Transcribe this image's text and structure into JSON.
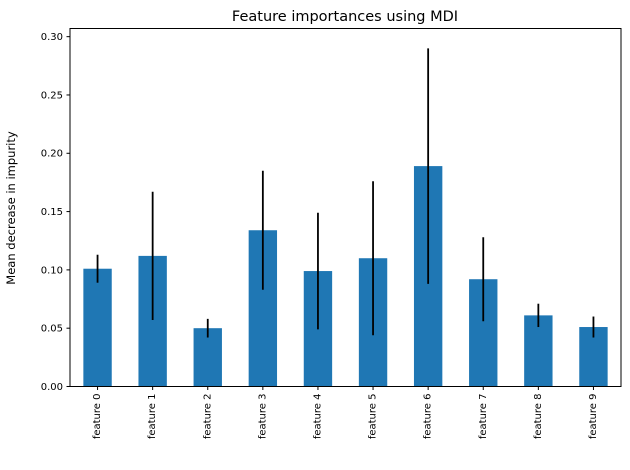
{
  "figure": {
    "background": "#ffffff"
  },
  "chart_data": {
    "type": "bar",
    "title": "Feature importances using MDI",
    "xlabel": "",
    "ylabel": "Mean decrease in impurity",
    "categories": [
      "feature 0",
      "feature 1",
      "feature 2",
      "feature 3",
      "feature 4",
      "feature 5",
      "feature 6",
      "feature 7",
      "feature 8",
      "feature 9"
    ],
    "values": [
      0.101,
      0.112,
      0.05,
      0.134,
      0.099,
      0.11,
      0.189,
      0.092,
      0.061,
      0.051
    ],
    "errors": [
      0.012,
      0.055,
      0.008,
      0.051,
      0.05,
      0.066,
      0.101,
      0.036,
      0.01,
      0.009
    ],
    "ytick_labels": [
      "0.00",
      "0.05",
      "0.10",
      "0.15",
      "0.20",
      "0.25",
      "0.30"
    ],
    "ylim": [
      0,
      0.307
    ],
    "grid": false,
    "legend": null,
    "xtick_rotation": 90,
    "bar_color": "#1f77b4",
    "error_color": "#000000",
    "spine_color": "#000000"
  }
}
